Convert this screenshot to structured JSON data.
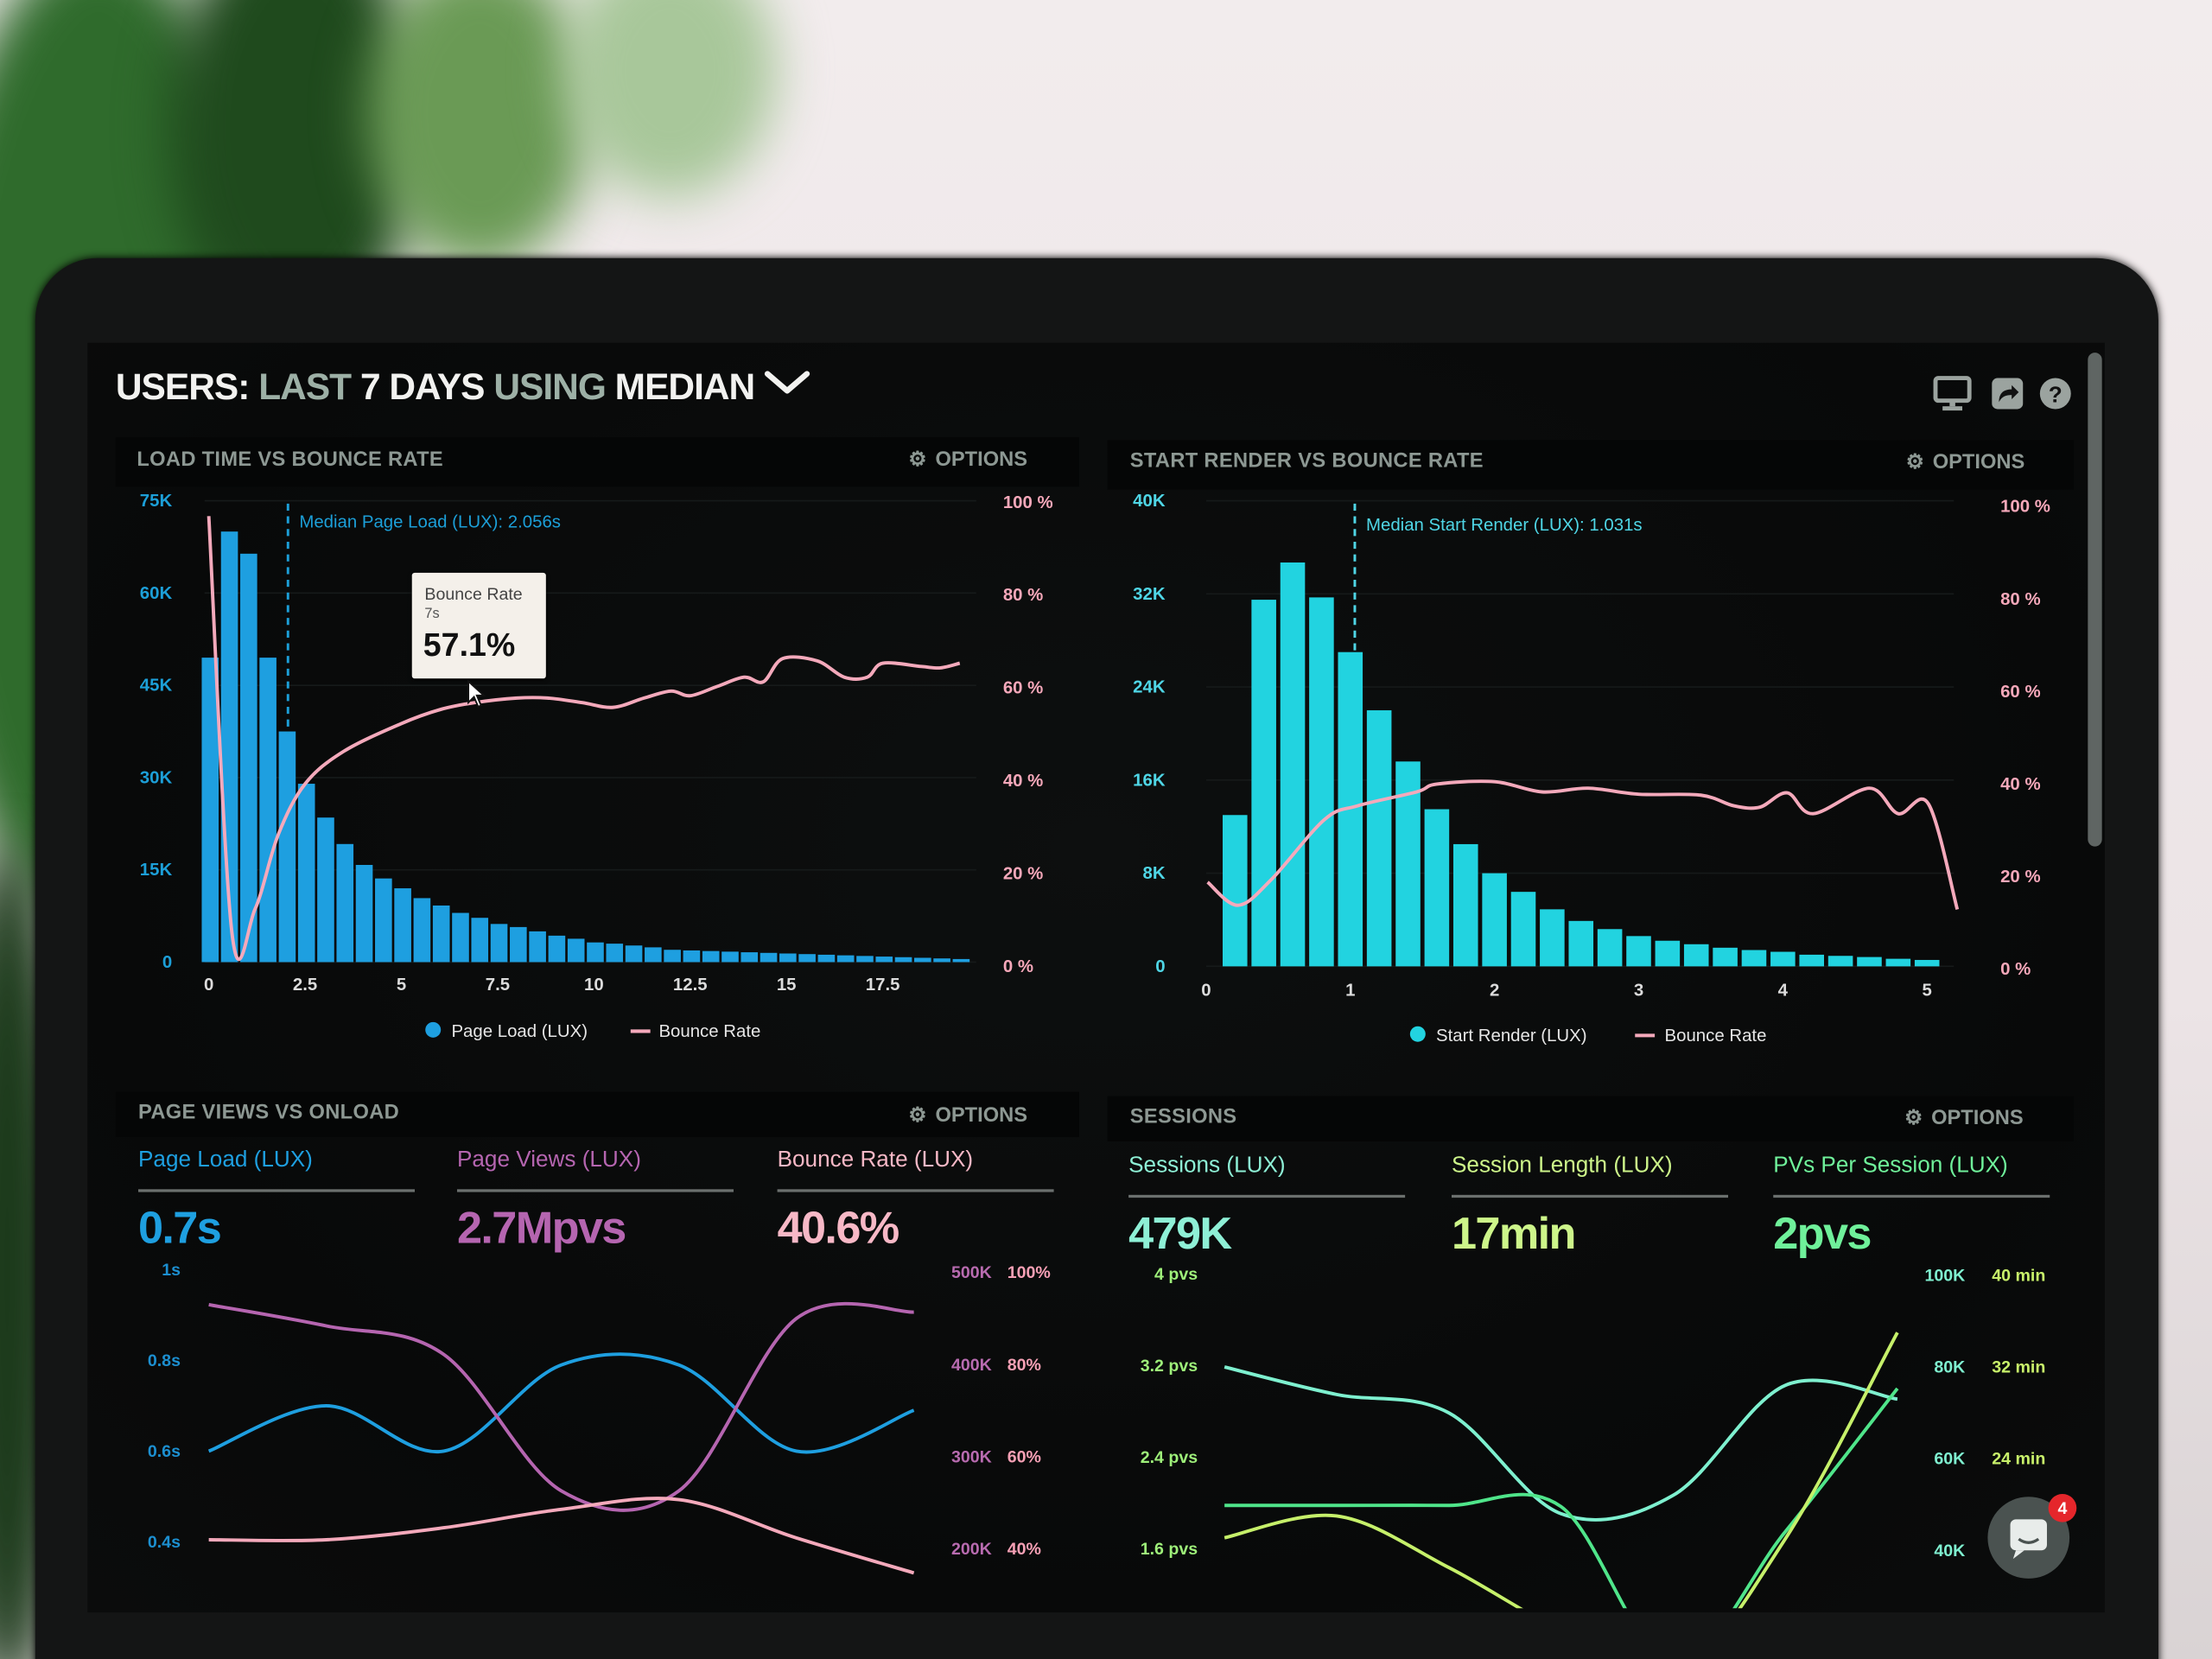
{
  "header": {
    "title_parts": [
      {
        "text": "USERS:",
        "tone": "white"
      },
      {
        "text": "LAST",
        "tone": "gray"
      },
      {
        "text": "7 DAYS",
        "tone": "white"
      },
      {
        "text": "USING",
        "tone": "gray"
      },
      {
        "text": "MEDIAN",
        "tone": "white"
      }
    ],
    "dropdown_icon": "chevron-down-icon",
    "icons": [
      "monitor-icon",
      "share-icon",
      "help-icon"
    ]
  },
  "options_label": "OPTIONS",
  "panels": {
    "load_time": {
      "title": "LOAD TIME VS BOUNCE RATE"
    },
    "start_render": {
      "title": "START RENDER VS BOUNCE RATE"
    },
    "page_views": {
      "title": "PAGE VIEWS VS ONLOAD",
      "metrics": [
        {
          "label": "Page Load (LUX)",
          "value": "0.7s",
          "color": "#1e9fe0"
        },
        {
          "label": "Page Views (LUX)",
          "value": "2.7Mpvs",
          "color": "#b565b0"
        },
        {
          "label": "Bounce Rate (LUX)",
          "value": "40.6%",
          "color": "#f7b8c6"
        }
      ]
    },
    "sessions": {
      "title": "SESSIONS",
      "metrics": [
        {
          "label": "Sessions (LUX)",
          "value": "479K",
          "color": "#8ef0d6"
        },
        {
          "label": "Session Length (LUX)",
          "value": "17min",
          "color": "#cdf58a"
        },
        {
          "label": "PVs Per Session (LUX)",
          "value": "2pvs",
          "color": "#6ff09a"
        }
      ]
    }
  },
  "tooltip": {
    "title": "Bounce Rate",
    "subtitle": "7s",
    "value": "57.1%"
  },
  "chat": {
    "badge_count": "4"
  },
  "chart_data": [
    {
      "type": "bar+line",
      "title": "LOAD TIME VS BOUNCE RATE",
      "x_ticks": [
        "0",
        "2.5",
        "5",
        "7.5",
        "10",
        "12.5",
        "15",
        "17.5"
      ],
      "x_tick_values": [
        0,
        2.5,
        5,
        7.5,
        10,
        12.5,
        15,
        17.5
      ],
      "y_left_ticks": [
        "0",
        "15K",
        "30K",
        "45K",
        "60K",
        "75K"
      ],
      "ylim_left": [
        0,
        75000
      ],
      "y_right_ticks": [
        "0 %",
        "20 %",
        "40 %",
        "60 %",
        "80 %",
        "100 %"
      ],
      "ylim_right": [
        0,
        100
      ],
      "grid": true,
      "bars": {
        "name": "Page Load (LUX)",
        "color": "#1e9fe0",
        "bin_width": 0.5,
        "values": [
          49500,
          70000,
          66400,
          49500,
          37500,
          29000,
          23500,
          19200,
          15800,
          13600,
          12000,
          10400,
          9200,
          8000,
          7200,
          6200,
          5700,
          5000,
          4300,
          3800,
          3200,
          3000,
          2700,
          2400,
          2000,
          1900,
          1800,
          1700,
          1600,
          1500,
          1400,
          1300,
          1200,
          1100,
          1000,
          900,
          800,
          700,
          600,
          500
        ]
      },
      "line": {
        "name": "Bounce Rate",
        "color": "#f4a9bb",
        "points": [
          [
            0,
            96.7
          ],
          [
            0.6,
            7
          ],
          [
            1.2,
            12
          ],
          [
            1.8,
            28
          ],
          [
            2.5,
            39
          ],
          [
            3.5,
            46
          ],
          [
            5,
            52
          ],
          [
            6,
            55
          ],
          [
            6.9,
            56.5
          ],
          [
            8,
            57.5
          ],
          [
            8.8,
            57.5
          ],
          [
            9.7,
            56.5
          ],
          [
            10.5,
            55.5
          ],
          [
            11.3,
            57.5
          ],
          [
            12,
            59
          ],
          [
            12.5,
            58
          ],
          [
            13.2,
            60
          ],
          [
            13.9,
            62
          ],
          [
            14.4,
            61
          ],
          [
            14.9,
            66
          ],
          [
            15.8,
            65.5
          ],
          [
            16.5,
            62
          ],
          [
            17.1,
            62
          ],
          [
            17.5,
            65
          ],
          [
            18.5,
            64.3
          ],
          [
            19,
            64
          ],
          [
            19.5,
            65
          ]
        ]
      },
      "annotation": {
        "label": "Median Page Load (LUX): 2.056s",
        "x": 2.056
      },
      "legend": "bottom"
    },
    {
      "type": "bar+line",
      "title": "START RENDER VS BOUNCE RATE",
      "x_ticks": [
        "0",
        "1",
        "2",
        "3",
        "4",
        "5"
      ],
      "x_tick_values": [
        0,
        1,
        2,
        3,
        4,
        5
      ],
      "y_left_ticks": [
        "0",
        "8K",
        "16K",
        "24K",
        "32K",
        "40K"
      ],
      "ylim_left": [
        0,
        40000
      ],
      "y_right_ticks": [
        "0 %",
        "20 %",
        "40 %",
        "60 %",
        "80 %",
        "100 %"
      ],
      "ylim_right": [
        0,
        100
      ],
      "grid": true,
      "bars": {
        "name": "Start Render (LUX)",
        "color": "#22d3e0",
        "bin_width": 0.2,
        "values": [
          13000,
          31500,
          34700,
          31700,
          27000,
          22000,
          17600,
          13500,
          10500,
          8000,
          6400,
          4900,
          3900,
          3200,
          2600,
          2200,
          1900,
          1600,
          1400,
          1250,
          1000,
          900,
          800,
          650,
          550
        ]
      },
      "line": {
        "name": "Bounce Rate",
        "color": "#f4a9bb",
        "points": [
          [
            0.01,
            18.5
          ],
          [
            0.22,
            13.5
          ],
          [
            0.45,
            19
          ],
          [
            0.82,
            32
          ],
          [
            1.05,
            35
          ],
          [
            1.46,
            38
          ],
          [
            1.6,
            39.7
          ],
          [
            2.0,
            40.2
          ],
          [
            2.33,
            38
          ],
          [
            2.65,
            38.8
          ],
          [
            3.0,
            37.5
          ],
          [
            3.43,
            37.3
          ],
          [
            3.66,
            35
          ],
          [
            3.84,
            34.7
          ],
          [
            4.03,
            37.8
          ],
          [
            4.21,
            33.3
          ],
          [
            4.6,
            38.8
          ],
          [
            4.8,
            33.3
          ],
          [
            5.01,
            35.4
          ],
          [
            5.21,
            12.6
          ]
        ]
      },
      "annotation": {
        "label": "Median Start Render (LUX): 1.031s",
        "x": 1.031
      },
      "legend": "bottom"
    },
    {
      "type": "line",
      "title": "PAGE VIEWS VS ONLOAD",
      "y_left_ticks": [
        "0.4s",
        "0.6s",
        "0.8s",
        "1s"
      ],
      "ylim_left": [
        0.4,
        1.0
      ],
      "y_right_ticks_a": [
        "200K",
        "300K",
        "400K",
        "500K"
      ],
      "ylim_right_a": [
        200000,
        500000
      ],
      "y_right_ticks_b": [
        "40%",
        "60%",
        "80%",
        "100%"
      ],
      "ylim_right_b": [
        40,
        100
      ],
      "series": [
        {
          "name": "Page Load (LUX)",
          "axis": "left",
          "color": "#1e9fe0",
          "values": [
            0.6,
            0.7,
            0.6,
            0.79,
            0.79,
            0.6,
            0.69
          ]
        },
        {
          "name": "Page Views (LUX)",
          "axis": "right_a",
          "color": "#b565b0",
          "values": [
            465000,
            442000,
            411000,
            263000,
            263000,
            450000,
            457000
          ]
        },
        {
          "name": "Bounce Rate (LUX)",
          "axis": "right_b",
          "color": "#f4a9bb",
          "values": [
            42,
            42,
            44.6,
            48.6,
            50.7,
            42.4,
            34.8
          ]
        }
      ]
    },
    {
      "type": "line",
      "title": "SESSIONS",
      "y_left_ticks": [
        "1.6 pvs",
        "2.4 pvs",
        "3.2 pvs",
        "4 pvs"
      ],
      "ylim_left": [
        1.6,
        4.0
      ],
      "y_right_ticks_a": [
        "40K",
        "60K",
        "80K",
        "100K"
      ],
      "ylim_right_a": [
        40000,
        100000
      ],
      "y_right_ticks_b": [
        "",
        "24 min",
        "32 min",
        "40 min"
      ],
      "ylim_right_b": [
        16,
        40
      ],
      "series": [
        {
          "name": "Sessions (LUX)",
          "axis": "right_a",
          "color": "#7ef0cf",
          "values": [
            80000,
            74000,
            70000,
            48000,
            52000,
            76000,
            73000
          ]
        },
        {
          "name": "PVs Per Session (LUX)",
          "axis": "left",
          "color": "#4fe58a",
          "values": [
            1.98,
            1.98,
            1.98,
            1.97,
            0.6,
            1.75,
            3.0
          ]
        },
        {
          "name": "Session Length (LUX)",
          "axis": "right_b",
          "color": "#c6f06a",
          "values": [
            17.1,
            19,
            14.5,
            9,
            5,
            17,
            35
          ]
        }
      ]
    }
  ]
}
